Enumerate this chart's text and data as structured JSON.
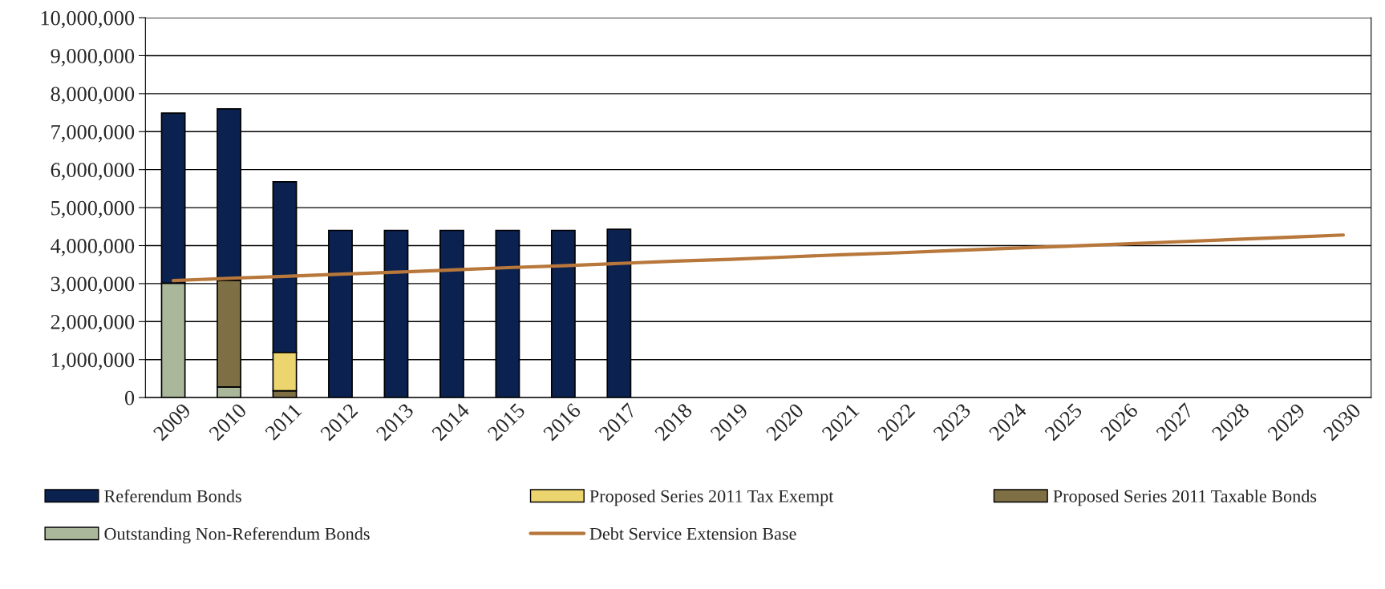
{
  "chart_data": {
    "type": "bar",
    "stacked": true,
    "grid": "y",
    "legend": "bottom",
    "categories": [
      "2009",
      "2010",
      "2011",
      "2012",
      "2013",
      "2014",
      "2015",
      "2016",
      "2017",
      "2018",
      "2019",
      "2020",
      "2021",
      "2022",
      "2023",
      "2024",
      "2025",
      "2026",
      "2027",
      "2028",
      "2029",
      "2030"
    ],
    "series": [
      {
        "name": "Outstanding Non-Referendum Bonds",
        "color": "#aab79a",
        "values": [
          3010000,
          280000,
          null,
          null,
          null,
          null,
          null,
          null,
          null,
          null,
          null,
          null,
          null,
          null,
          null,
          null,
          null,
          null,
          null,
          null,
          null,
          null
        ]
      },
      {
        "name": "Proposed Series 2011 Taxable Bonds",
        "color": "#7f6f45",
        "values": [
          null,
          2810000,
          180000,
          null,
          null,
          null,
          null,
          null,
          null,
          null,
          null,
          null,
          null,
          null,
          null,
          null,
          null,
          null,
          null,
          null,
          null,
          null
        ]
      },
      {
        "name": "Proposed Series 2011 Tax Exempt",
        "color": "#ecd46f",
        "values": [
          null,
          null,
          1010000,
          null,
          null,
          null,
          null,
          null,
          null,
          null,
          null,
          null,
          null,
          null,
          null,
          null,
          null,
          null,
          null,
          null,
          null,
          null
        ]
      },
      {
        "name": "Referendum Bonds",
        "color": "#0b2150",
        "values": [
          4480000,
          4510000,
          4490000,
          4400000,
          4400000,
          4400000,
          4400000,
          4400000,
          4430000,
          null,
          null,
          null,
          null,
          null,
          null,
          null,
          null,
          null,
          null,
          null,
          null,
          null
        ]
      },
      {
        "name": "Debt Service Extension Base",
        "type": "line",
        "color": "#b8773b",
        "values": [
          3080000,
          3140000,
          3190000,
          3250000,
          3300000,
          3360000,
          3420000,
          3470000,
          3530000,
          3590000,
          3640000,
          3700000,
          3760000,
          3810000,
          3870000,
          3930000,
          3980000,
          4040000,
          4100000,
          4160000,
          4220000,
          4280000
        ]
      }
    ],
    "ylim": [
      0,
      10000000
    ],
    "yticks": [
      {
        "value": 0,
        "label": "0"
      },
      {
        "value": 1000000,
        "label": "1,000,000"
      },
      {
        "value": 2000000,
        "label": "2,000,000"
      },
      {
        "value": 3000000,
        "label": "3,000,000"
      },
      {
        "value": 4000000,
        "label": "4,000,000"
      },
      {
        "value": 5000000,
        "label": "5,000,000"
      },
      {
        "value": 6000000,
        "label": "6,000,000"
      },
      {
        "value": 7000000,
        "label": "7,000,000"
      },
      {
        "value": 8000000,
        "label": "8,000,000"
      },
      {
        "value": 9000000,
        "label": "9,000,000"
      },
      {
        "value": 10000000,
        "label": "10,000,000"
      }
    ]
  }
}
